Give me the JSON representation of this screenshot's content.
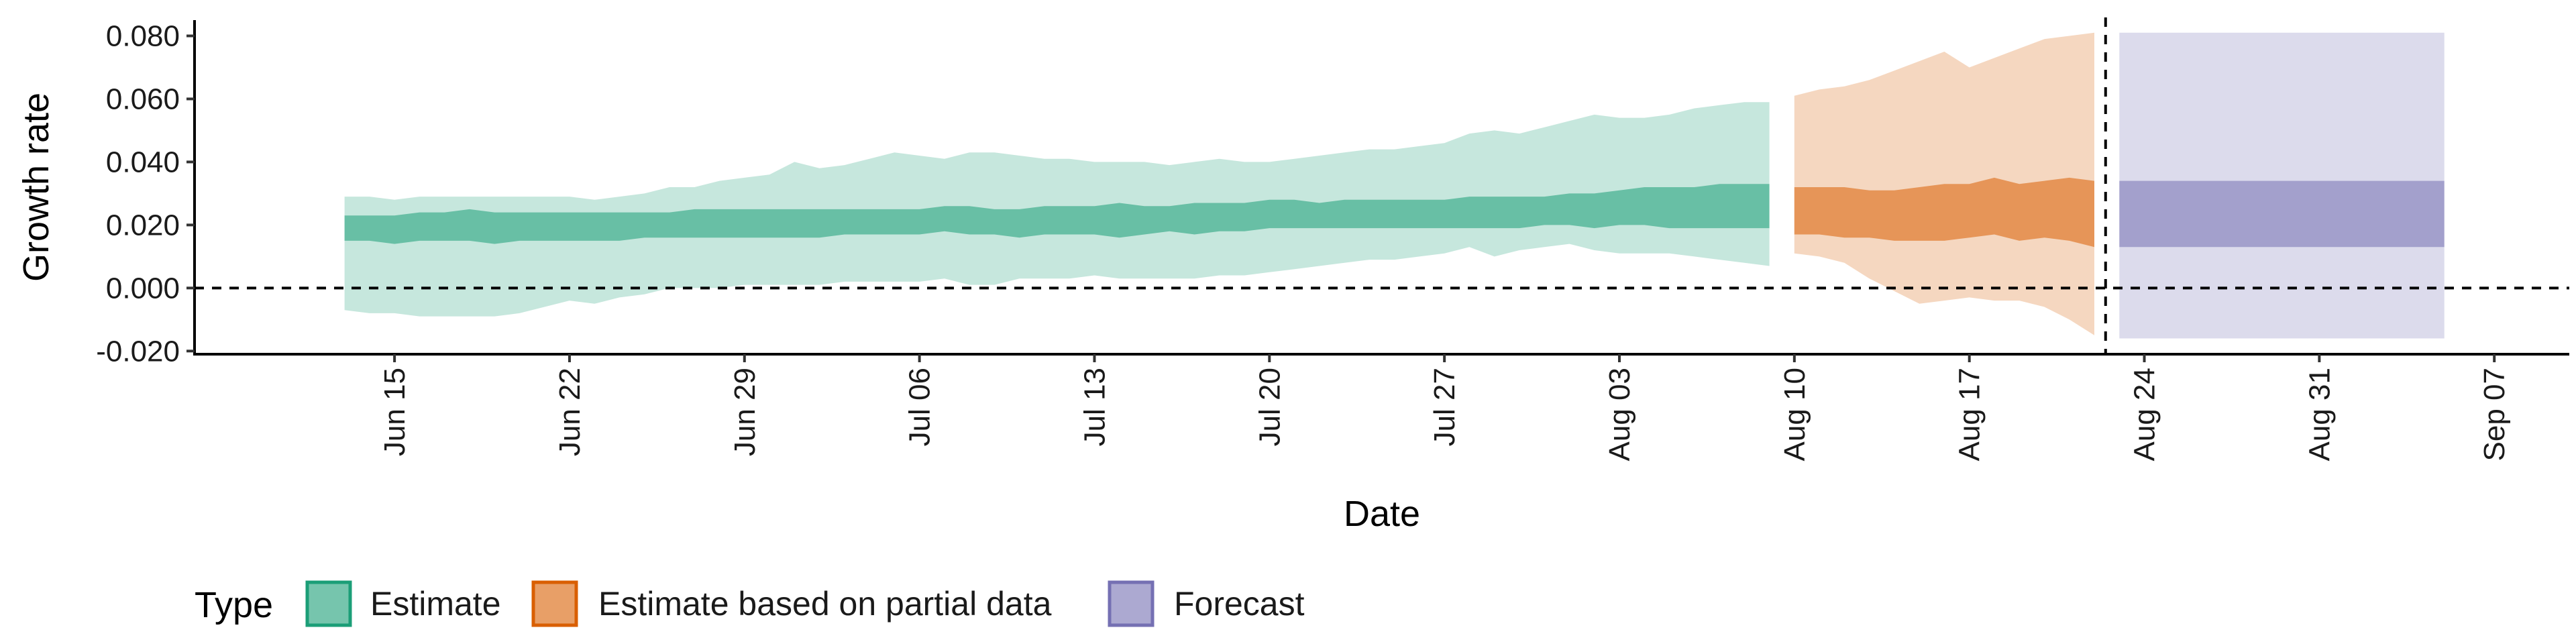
{
  "chart_data": {
    "type": "area",
    "xlabel": "Date",
    "ylabel": "Growth rate",
    "x_range": [
      "2020-06-07",
      "2020-09-10"
    ],
    "ylim": [
      -0.021,
      0.085
    ],
    "y_ticks": [
      -0.02,
      0.0,
      0.02,
      0.04,
      0.06,
      0.08
    ],
    "y_tick_labels": [
      "-0.020",
      "0.000",
      "0.020",
      "0.040",
      "0.060",
      "0.080"
    ],
    "x_ticks": [
      "2020-06-15",
      "2020-06-22",
      "2020-06-29",
      "2020-07-06",
      "2020-07-13",
      "2020-07-20",
      "2020-07-27",
      "2020-08-03",
      "2020-08-10",
      "2020-08-17",
      "2020-08-24",
      "2020-08-31",
      "2020-09-07"
    ],
    "x_tick_labels": [
      "Jun 15",
      "Jun 22",
      "Jun 29",
      "Jul 06",
      "Jul 13",
      "Jul 20",
      "Jul 27",
      "Aug 03",
      "Aug 10",
      "Aug 17",
      "Aug 24",
      "Aug 31",
      "Sep 07"
    ],
    "grid": false,
    "reference_lines": [
      {
        "axis": "y",
        "value": 0.0,
        "style": "dashed"
      },
      {
        "axis": "x",
        "value": "2020-08-22",
        "style": "dashed"
      }
    ],
    "legend": {
      "title": "Type",
      "position": "bottom-left",
      "entries": [
        {
          "label": "Estimate",
          "fill": "#1b9e77",
          "outline": "#1b9e77"
        },
        {
          "label": "Estimate based on partial data",
          "fill": "#d95f02",
          "outline": "#d95f02"
        },
        {
          "label": "Forecast",
          "fill": "#7570b3",
          "outline": "#7570b3"
        }
      ]
    },
    "series": [
      {
        "name": "Estimate",
        "color": "#1b9e77",
        "dates": [
          "2020-06-13",
          "2020-06-14",
          "2020-06-15",
          "2020-06-16",
          "2020-06-17",
          "2020-06-18",
          "2020-06-19",
          "2020-06-20",
          "2020-06-21",
          "2020-06-22",
          "2020-06-23",
          "2020-06-24",
          "2020-06-25",
          "2020-06-26",
          "2020-06-27",
          "2020-06-28",
          "2020-06-29",
          "2020-06-30",
          "2020-07-01",
          "2020-07-02",
          "2020-07-03",
          "2020-07-04",
          "2020-07-05",
          "2020-07-06",
          "2020-07-07",
          "2020-07-08",
          "2020-07-09",
          "2020-07-10",
          "2020-07-11",
          "2020-07-12",
          "2020-07-13",
          "2020-07-14",
          "2020-07-15",
          "2020-07-16",
          "2020-07-17",
          "2020-07-18",
          "2020-07-19",
          "2020-07-20",
          "2020-07-21",
          "2020-07-22",
          "2020-07-23",
          "2020-07-24",
          "2020-07-25",
          "2020-07-26",
          "2020-07-27",
          "2020-07-28",
          "2020-07-29",
          "2020-07-30",
          "2020-07-31",
          "2020-08-01",
          "2020-08-02",
          "2020-08-03",
          "2020-08-04",
          "2020-08-05",
          "2020-08-06",
          "2020-08-07",
          "2020-08-08",
          "2020-08-09"
        ],
        "outer_upper": [
          0.029,
          0.029,
          0.028,
          0.029,
          0.029,
          0.029,
          0.029,
          0.029,
          0.029,
          0.029,
          0.028,
          0.029,
          0.03,
          0.032,
          0.032,
          0.034,
          0.035,
          0.036,
          0.04,
          0.038,
          0.039,
          0.041,
          0.043,
          0.042,
          0.041,
          0.043,
          0.043,
          0.042,
          0.041,
          0.041,
          0.04,
          0.04,
          0.04,
          0.039,
          0.04,
          0.041,
          0.04,
          0.04,
          0.041,
          0.042,
          0.043,
          0.044,
          0.044,
          0.045,
          0.046,
          0.049,
          0.05,
          0.049,
          0.051,
          0.053,
          0.055,
          0.054,
          0.054,
          0.055,
          0.057,
          0.058,
          0.059,
          0.059
        ],
        "inner_upper": [
          0.023,
          0.023,
          0.023,
          0.024,
          0.024,
          0.025,
          0.024,
          0.024,
          0.024,
          0.024,
          0.024,
          0.024,
          0.024,
          0.024,
          0.025,
          0.025,
          0.025,
          0.025,
          0.025,
          0.025,
          0.025,
          0.025,
          0.025,
          0.025,
          0.026,
          0.026,
          0.025,
          0.025,
          0.026,
          0.026,
          0.026,
          0.027,
          0.026,
          0.026,
          0.027,
          0.027,
          0.027,
          0.028,
          0.028,
          0.027,
          0.028,
          0.028,
          0.028,
          0.028,
          0.028,
          0.029,
          0.029,
          0.029,
          0.029,
          0.03,
          0.03,
          0.031,
          0.032,
          0.032,
          0.032,
          0.033,
          0.033,
          0.033
        ],
        "inner_lower": [
          0.015,
          0.015,
          0.014,
          0.015,
          0.015,
          0.015,
          0.014,
          0.015,
          0.015,
          0.015,
          0.015,
          0.015,
          0.016,
          0.016,
          0.016,
          0.016,
          0.016,
          0.016,
          0.016,
          0.016,
          0.017,
          0.017,
          0.017,
          0.017,
          0.018,
          0.017,
          0.017,
          0.016,
          0.017,
          0.017,
          0.017,
          0.016,
          0.017,
          0.018,
          0.017,
          0.018,
          0.018,
          0.019,
          0.019,
          0.019,
          0.019,
          0.019,
          0.019,
          0.019,
          0.019,
          0.019,
          0.019,
          0.019,
          0.02,
          0.02,
          0.019,
          0.02,
          0.02,
          0.019,
          0.019,
          0.019,
          0.019,
          0.019
        ],
        "outer_lower": [
          -0.007,
          -0.008,
          -0.008,
          -0.009,
          -0.009,
          -0.009,
          -0.009,
          -0.008,
          -0.006,
          -0.004,
          -0.005,
          -0.003,
          -0.002,
          0.0,
          0.0,
          0.0,
          0.001,
          0.001,
          0.001,
          0.001,
          0.002,
          0.002,
          0.002,
          0.002,
          0.003,
          0.001,
          0.001,
          0.003,
          0.003,
          0.003,
          0.004,
          0.003,
          0.003,
          0.003,
          0.003,
          0.004,
          0.004,
          0.005,
          0.006,
          0.007,
          0.008,
          0.009,
          0.009,
          0.01,
          0.011,
          0.013,
          0.01,
          0.012,
          0.013,
          0.014,
          0.012,
          0.011,
          0.011,
          0.011,
          0.01,
          0.009,
          0.008,
          0.007
        ]
      },
      {
        "name": "Estimate based on partial data",
        "color": "#d95f02",
        "dates": [
          "2020-08-10",
          "2020-08-11",
          "2020-08-12",
          "2020-08-13",
          "2020-08-14",
          "2020-08-15",
          "2020-08-16",
          "2020-08-17",
          "2020-08-18",
          "2020-08-19",
          "2020-08-20",
          "2020-08-21",
          "2020-08-22"
        ],
        "outer_upper": [
          0.061,
          0.063,
          0.064,
          0.066,
          0.069,
          0.072,
          0.075,
          0.07,
          0.073,
          0.076,
          0.079,
          0.08,
          0.081
        ],
        "inner_upper": [
          0.032,
          0.032,
          0.032,
          0.031,
          0.031,
          0.032,
          0.033,
          0.033,
          0.035,
          0.033,
          0.034,
          0.035,
          0.034
        ],
        "inner_lower": [
          0.017,
          0.017,
          0.016,
          0.016,
          0.015,
          0.015,
          0.015,
          0.016,
          0.017,
          0.015,
          0.016,
          0.015,
          0.013
        ],
        "outer_lower": [
          0.011,
          0.01,
          0.008,
          0.003,
          -0.001,
          -0.005,
          -0.004,
          -0.003,
          -0.004,
          -0.004,
          -0.006,
          -0.01,
          -0.015
        ]
      },
      {
        "name": "Forecast",
        "color": "#7570b3",
        "dates": [
          "2020-08-23",
          "2020-09-05"
        ],
        "outer_upper": [
          0.081,
          0.081
        ],
        "inner_upper": [
          0.034,
          0.034
        ],
        "inner_lower": [
          0.013,
          0.013
        ],
        "outer_lower": [
          -0.016,
          -0.016
        ]
      }
    ]
  }
}
